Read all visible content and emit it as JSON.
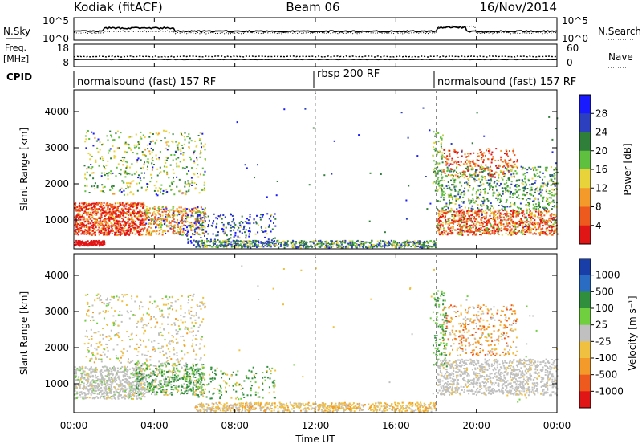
{
  "header": {
    "station": "Kodiak (fitACF)",
    "beam": "Beam 06",
    "date": "16/Nov/2014"
  },
  "colors": {
    "power": [
      "#1a1aff",
      "#2b3fbf",
      "#2f7f3a",
      "#5fbf3f",
      "#e8d33a",
      "#f39a2a",
      "#ee5a1e",
      "#e01515"
    ],
    "velocity": [
      "#1a3ea8",
      "#2a6bc4",
      "#2f8f3c",
      "#6fcf3f",
      "#c0c0c0",
      "#f0c040",
      "#f39a2a",
      "#ee5a1e",
      "#e01515"
    ]
  },
  "chart_data": [
    {
      "type": "line",
      "panel": "nsky-nsearch",
      "left_label": "N.Sky",
      "right_label": "N.Search",
      "left_ticks": [
        "10^5",
        "10^0"
      ],
      "right_ticks": [
        "10^5",
        "10^0"
      ]
    },
    {
      "type": "line",
      "panel": "freq-nave",
      "left_label_1": "Freq.",
      "left_label_2": "[MHz]",
      "left_ticks": [
        18,
        8
      ],
      "right_label": "Nave",
      "right_ticks": [
        60,
        0
      ]
    },
    {
      "type": "table",
      "panel": "cpid",
      "label": "CPID",
      "segments": [
        {
          "start_hr": 0,
          "end_hr": 12,
          "text": "normalsound (fast) 157 RF"
        },
        {
          "start_hr": 12,
          "end_hr": 18,
          "text": "rbsp 200 RF"
        },
        {
          "start_hr": 18,
          "end_hr": 24,
          "text": "normalsound (fast) 157 RF"
        }
      ]
    },
    {
      "type": "heatmap",
      "panel": "power",
      "ylabel": "Slant Range [km]",
      "yticks": [
        1000,
        2000,
        3000,
        4000
      ],
      "ylim": [
        200,
        4600
      ],
      "colorbar_label": "Power [dB]",
      "colorbar_ticks": [
        28,
        24,
        20,
        16,
        12,
        8,
        4
      ]
    },
    {
      "type": "heatmap",
      "panel": "velocity",
      "ylabel": "Slant Range [km]",
      "yticks": [
        1000,
        2000,
        3000,
        4000
      ],
      "ylim": [
        200,
        4600
      ],
      "colorbar_label": "Velocity [m s⁻¹]",
      "colorbar_ticks": [
        1000,
        500,
        100,
        25,
        -25,
        -100,
        -500,
        -1000
      ]
    }
  ],
  "time_axis": {
    "xlabel": "Time UT",
    "tick_labels": [
      "00:00",
      "04:00",
      "08:00",
      "12:00",
      "16:00",
      "20:00",
      "00:00"
    ],
    "tick_hours": [
      0,
      4,
      8,
      12,
      16,
      20,
      24
    ]
  }
}
